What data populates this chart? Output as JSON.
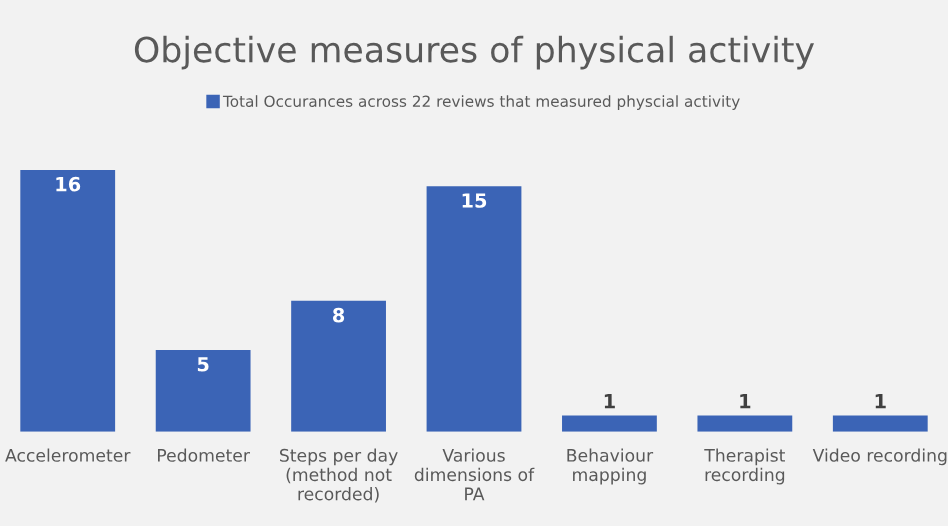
{
  "chart_data": {
    "type": "bar",
    "title": "Objective measures of physical activity",
    "categories": [
      "Accelerometer",
      "Pedometer",
      "Steps per day (method not recorded)",
      "Various dimensions of PA",
      "Behaviour mapping",
      "Therapist recording",
      "Video recording"
    ],
    "series": [
      {
        "name": "Total Occurances across 22 reviews that measured physcial activity",
        "color": "#3b64b6",
        "values": [
          16,
          5,
          8,
          15,
          1,
          1,
          1
        ]
      }
    ],
    "data_labels": true,
    "legend": "top",
    "grid": false
  }
}
